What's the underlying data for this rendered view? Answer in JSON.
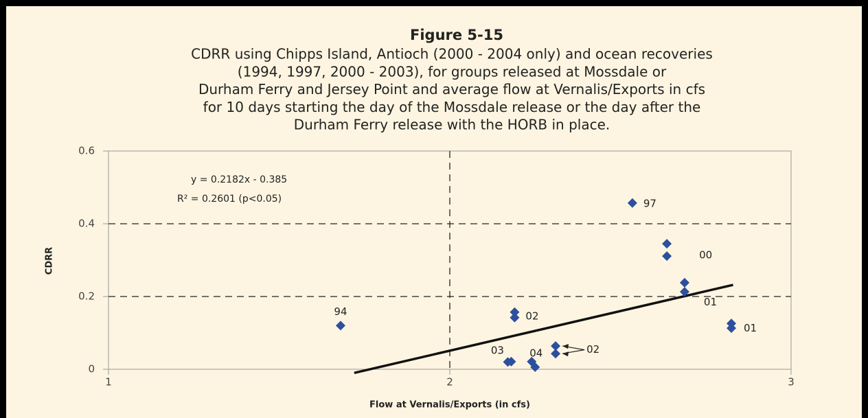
{
  "chart_data": {
    "type": "scatter",
    "title": "Figure 5-15",
    "subtitle": [
      "CDRR using Chipps Island, Antioch (2000 - 2004 only) and ocean recoveries",
      "(1994, 1997, 2000 - 2003), for groups released at Mossdale or",
      "Durham Ferry and Jersey Point and average flow at Vernalis/Exports in cfs",
      "for 10 days starting the day of the Mossdale release or the day after the",
      "Durham Ferry release with the HORB in place."
    ],
    "x_label": "Flow at Vernalis/Exports (in cfs)",
    "y_label": "CDRR",
    "annotations": [
      "y = 0.2182x - 0.385",
      "R² = 0.2601 (p<0.05)"
    ],
    "color": "#2c4f9e",
    "groups": [
      {
        "label": "94",
        "x": [
          1.68
        ],
        "values": [
          0.12
        ]
      },
      {
        "label": "02",
        "x": [
          2.19,
          2.19
        ],
        "values": [
          0.157,
          0.142
        ]
      },
      {
        "label": "03",
        "x": [
          2.18,
          2.17
        ],
        "values": [
          0.021,
          0.02
        ]
      },
      {
        "label": "04",
        "x": [
          2.24,
          2.25
        ],
        "values": [
          0.021,
          0.006
        ]
      },
      {
        "label": "02",
        "x": [
          2.31,
          2.31
        ],
        "values": [
          0.064,
          0.043
        ]
      },
      {
        "label": "97",
        "x": [
          2.535
        ],
        "values": [
          0.457
        ]
      },
      {
        "label": "00",
        "x": [
          2.636,
          2.636
        ],
        "values": [
          0.345,
          0.311
        ]
      },
      {
        "label": "01",
        "x": [
          2.688,
          2.688
        ],
        "values": [
          0.238,
          0.213
        ]
      },
      {
        "label": "01",
        "x": [
          2.825,
          2.825
        ],
        "values": [
          0.126,
          0.113
        ]
      }
    ],
    "trendline": {
      "x": [
        1.72,
        2.83
      ],
      "values": [
        -0.01,
        0.232
      ]
    },
    "xlim": [
      1,
      3
    ],
    "xticks": [
      1,
      2,
      3
    ],
    "ylim": [
      0,
      0.6
    ],
    "yticks": [
      0,
      0.2,
      0.4,
      0.6
    ],
    "grid": true
  }
}
